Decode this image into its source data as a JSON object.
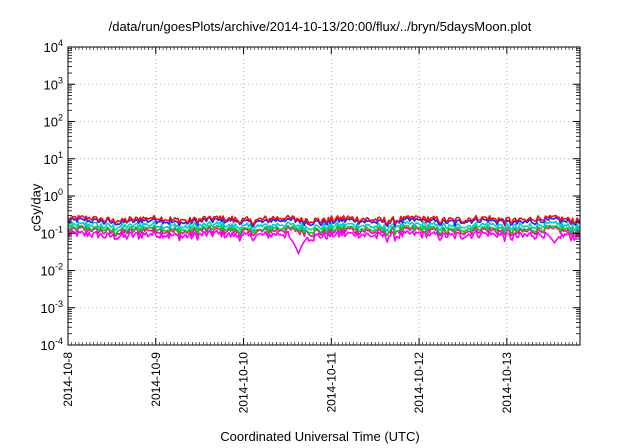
{
  "chart_data": {
    "type": "line",
    "title": "/data/run/goesPlots/archive/2014-10-13/20:00/flux/../bryn/5daysMoon.plot",
    "xlabel": "Coordinated Universal Time (UTC)",
    "ylabel": "cGy/day",
    "yscale": "log",
    "ylim": [
      0.0001,
      10000
    ],
    "y_ticks": [
      {
        "base": "10",
        "exp": "-4",
        "value": 0.0001
      },
      {
        "base": "10",
        "exp": "-3",
        "value": 0.001
      },
      {
        "base": "10",
        "exp": "-2",
        "value": 0.01
      },
      {
        "base": "10",
        "exp": "-1",
        "value": 0.1
      },
      {
        "base": "10",
        "exp": "0",
        "value": 1
      },
      {
        "base": "10",
        "exp": "1",
        "value": 10
      },
      {
        "base": "10",
        "exp": "2",
        "value": 100
      },
      {
        "base": "10",
        "exp": "3",
        "value": 1000
      },
      {
        "base": "10",
        "exp": "4",
        "value": 10000
      }
    ],
    "xlim": [
      "2014-10-08T00:00",
      "2014-10-13T20:00"
    ],
    "x_ticks": [
      "2014-10-8",
      "2014-10-9",
      "2014-10-10",
      "2014-10-11",
      "2014-10-12",
      "2014-10-13"
    ],
    "grid": true,
    "legend": "none",
    "series": [
      {
        "color": "#ee1111",
        "base": 0.24,
        "swing": 0.18
      },
      {
        "color": "#2222ee",
        "base": 0.21,
        "swing": 0.18
      },
      {
        "color": "#00cccc",
        "base": 0.16,
        "swing": 0.2
      },
      {
        "color": "#22bb22",
        "base": 0.13,
        "swing": 0.2
      },
      {
        "color": "#ee1199",
        "base": 0.115,
        "swing": 0.22
      },
      {
        "color": "#ff00ff",
        "base": 0.09,
        "swing": 0.25
      }
    ],
    "annotations": [
      {
        "text": "dip",
        "x": "2014-10-10T15:00",
        "y": 0.028,
        "series_color": "#ff00ff"
      },
      {
        "text": "dip",
        "x": "2014-10-13T13:00",
        "y": 0.055,
        "series_color": "#ff00ff"
      }
    ]
  }
}
